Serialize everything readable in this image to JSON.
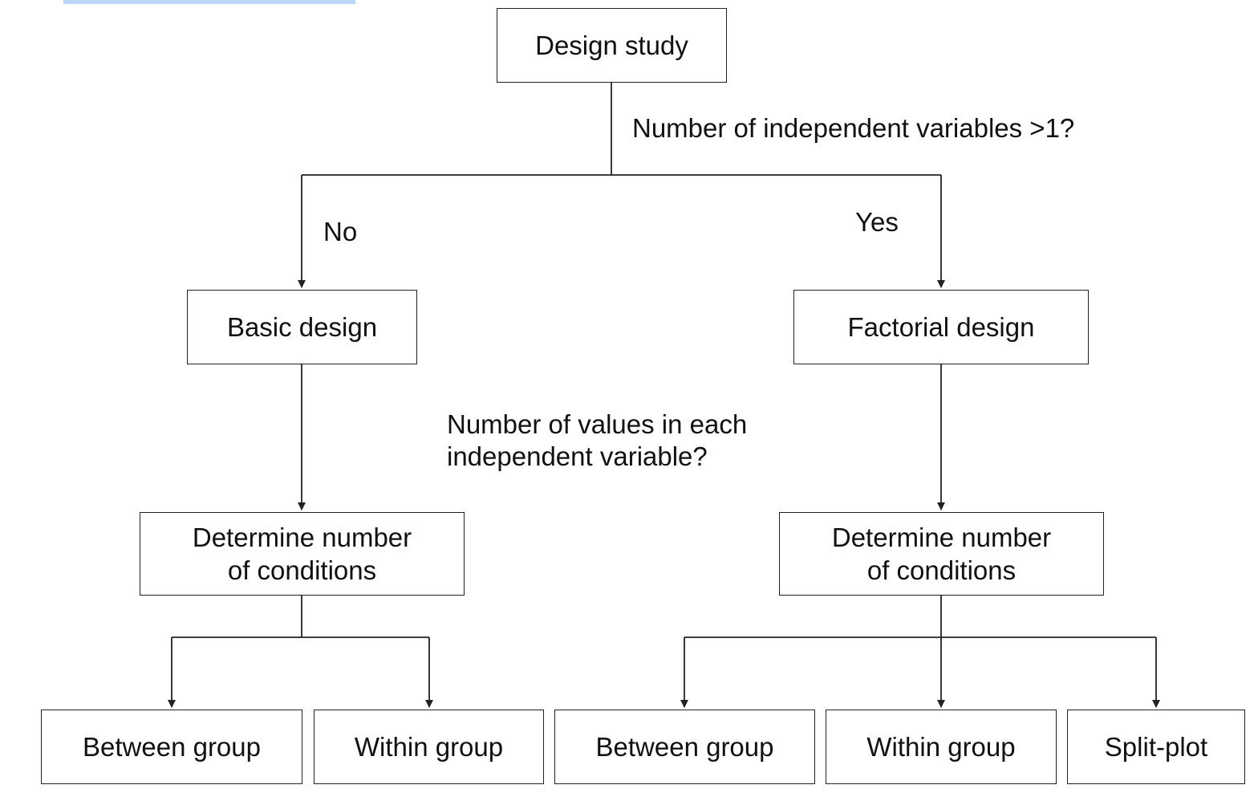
{
  "diagram": {
    "nodes": {
      "root": "Design study",
      "basic": "Basic design",
      "factorial": "Factorial design",
      "basic_conditions": "Determine number\nof conditions",
      "factorial_conditions": "Determine number\nof conditions",
      "basic_between": "Between group",
      "basic_within": "Within group",
      "factorial_between": "Between group",
      "factorial_within": "Within group",
      "split_plot": "Split-plot"
    },
    "labels": {
      "question_iv": "Number of independent variables >1?",
      "no": "No",
      "yes": "Yes",
      "question_values": "Number of values in each\nindependent variable?"
    }
  },
  "colors": {
    "stroke": "#222222",
    "text": "#111111",
    "selection": "#b9d7fb"
  }
}
